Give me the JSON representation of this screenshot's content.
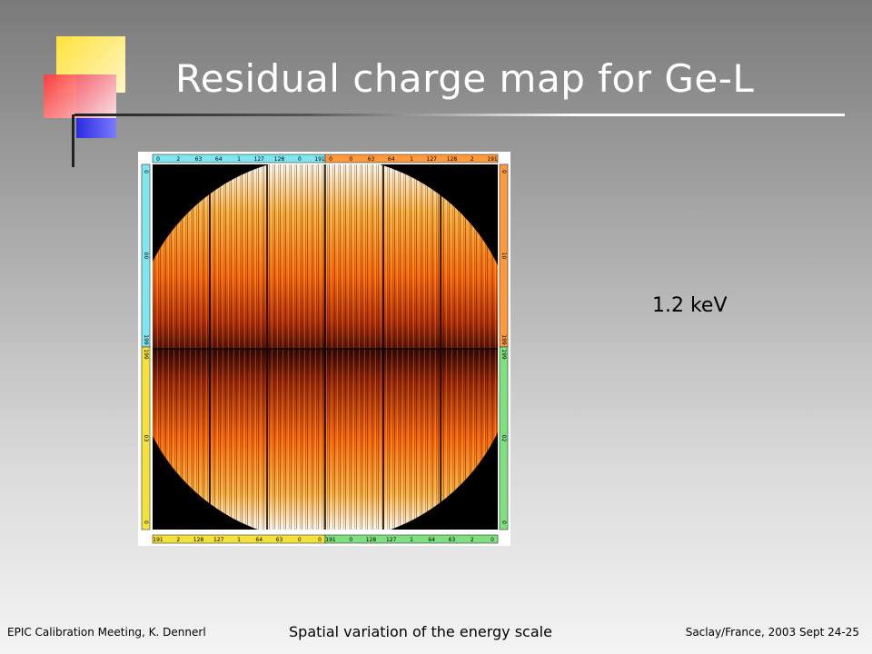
{
  "slide": {
    "title": "Residual charge map for Ge-L",
    "energy_label": "1.2 keV",
    "footer_left": "EPIC Calibration Meeting, K. Dennerl",
    "footer_center": "Spatial variation of the energy scale",
    "footer_right": "Saclay/France, 2003 Sept 24-25"
  },
  "figure": {
    "top_axis": [
      {
        "labels": [
          "0",
          "2",
          "63",
          "64",
          "1",
          "127",
          "128",
          "0",
          "191"
        ],
        "color": "#7fe6f0"
      },
      {
        "labels": [
          "0",
          "0",
          "63",
          "64",
          "1",
          "127",
          "128",
          "2",
          "191"
        ],
        "color": "#ff9a3c"
      }
    ],
    "bottom_axis": [
      {
        "labels": [
          "191",
          "2",
          "128",
          "127",
          "1",
          "64",
          "63",
          "0",
          "0"
        ],
        "color": "#f4e23a"
      },
      {
        "labels": [
          "191",
          "0",
          "128",
          "127",
          "1",
          "64",
          "63",
          "2",
          "0"
        ],
        "color": "#7fe07f"
      }
    ],
    "left_axis": [
      {
        "labels": [
          "0",
          "00",
          "199"
        ],
        "color": "#7fe6f0"
      },
      {
        "labels": [
          "199",
          "03",
          "0"
        ],
        "color": "#f4e23a"
      }
    ],
    "right_axis": [
      {
        "labels": [
          "0",
          "10",
          "199"
        ],
        "color": "#ff9a3c"
      },
      {
        "labels": [
          "199",
          "02",
          "0"
        ],
        "color": "#7fe07f"
      }
    ],
    "colors": {
      "background": "#000000",
      "low": "#ff5a00",
      "high": "#ffffff",
      "dark": "#3a0800"
    }
  }
}
